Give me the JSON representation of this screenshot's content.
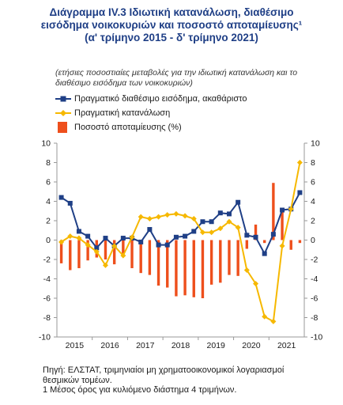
{
  "title_lines": [
    "Διάγραμμα IV.3 Ιδιωτική κατανάλωση, διαθέσιμο",
    "εισόδημα νοικοκυριών και ποσοστό αποταμίευσης¹",
    "(α' τρίμηνο 2015 - δ' τρίμηνο 2021)"
  ],
  "subtitle_lines": [
    "(ετήσιες ποσοστιαίες μεταβολές για την ιδιωτική κατανάλωση και το",
    "διαθέσιμο εισόδημα των νοικοκυριών)"
  ],
  "colors": {
    "income": "#1f3f86",
    "consumption": "#f6b800",
    "saving": "#ee4f1c",
    "title": "#1f3f86",
    "axis": "#999999"
  },
  "legend": [
    {
      "key": "income",
      "label": "Πραγματικό διαθέσιμο εισόδημα, ακαθάριστο",
      "marker": "line-square"
    },
    {
      "key": "consumption",
      "label": "Πραγματική κατανάλωση",
      "marker": "line-diamond"
    },
    {
      "key": "saving",
      "label": "Ποσοστό αποταμίευσης (%)",
      "marker": "bar"
    }
  ],
  "chart_data": {
    "type": "bar+line",
    "x_tick_labels": [
      "2015",
      "2016",
      "2017",
      "2018",
      "2019",
      "2020",
      "2021"
    ],
    "quarters_per_year": 4,
    "ylim": [
      -10,
      10
    ],
    "yticks": [
      -10,
      -8,
      -6,
      -4,
      -2,
      0,
      2,
      4,
      6,
      8,
      10
    ],
    "y_left_axis": true,
    "y_right_axis": true,
    "grid": false,
    "legend_position": "top-left",
    "series": [
      {
        "name": "Πραγματικό διαθέσιμο εισόδημα, ακαθάριστο",
        "type": "line",
        "marker": "square",
        "values": [
          4.4,
          3.8,
          0.9,
          0.4,
          -0.8,
          0.2,
          -0.6,
          0.2,
          0.2,
          -0.2,
          1.1,
          -0.5,
          -0.5,
          0.3,
          0.4,
          0.9,
          1.9,
          1.9,
          2.8,
          2.7,
          3.9,
          0.5,
          0.3,
          -1.4,
          0.6,
          3.1,
          3.2,
          4.9
        ]
      },
      {
        "name": "Πραγματική κατανάλωση",
        "type": "line",
        "marker": "diamond",
        "values": [
          -0.2,
          0.4,
          0.2,
          -0.5,
          -1.2,
          -2.6,
          -0.6,
          -1.6,
          0.3,
          2.4,
          2.2,
          2.4,
          2.6,
          2.7,
          2.5,
          2.2,
          0.8,
          0.8,
          1.2,
          1.9,
          1.3,
          -3.1,
          -4.5,
          -7.9,
          -8.4,
          -0.6,
          3.2,
          8.0
        ]
      },
      {
        "name": "Ποσοστό αποταμίευσης (%)",
        "type": "bar",
        "values": [
          -2.4,
          -3.1,
          -2.9,
          -2.1,
          -1.8,
          -2.0,
          -2.5,
          -1.6,
          -2.9,
          -3.4,
          -3.6,
          -4.7,
          -4.9,
          -5.8,
          -5.7,
          -5.9,
          -6.0,
          -4.6,
          -4.4,
          -3.6,
          -3.7,
          -0.9,
          1.6,
          -0.3,
          5.9,
          3.1,
          -1.0,
          -0.3
        ]
      }
    ]
  },
  "source_lines": [
    "Πηγή: ΕΛΣΤΑΤ, τριμηνιαίοι μη χρηματοοικονομικοί λογαριασμοί",
    "θεσμικών τομέων.",
    "1 Μέσος όρος για κυλιόμενο διάστημα 4 τριμήνων."
  ]
}
